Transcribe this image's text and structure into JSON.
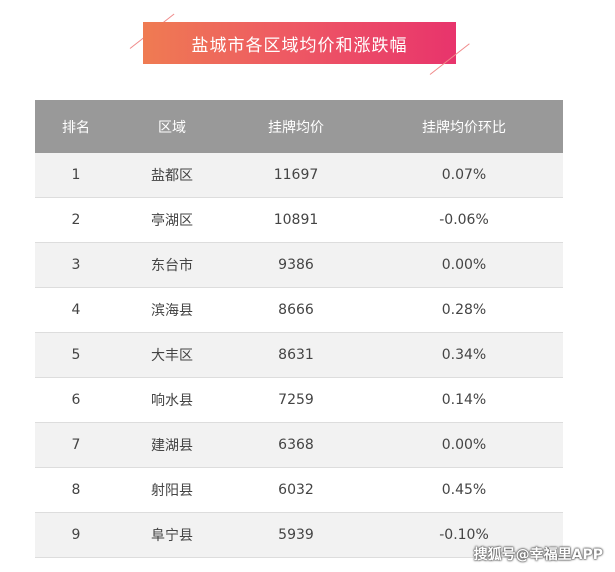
{
  "title": "盐城市各区域均价和涨跌幅",
  "table": {
    "headers": [
      "排名",
      "区域",
      "挂牌均价",
      "挂牌均价环比"
    ],
    "rows": [
      [
        "1",
        "盐都区",
        "11697",
        "0.07%"
      ],
      [
        "2",
        "亭湖区",
        "10891",
        "-0.06%"
      ],
      [
        "3",
        "东台市",
        "9386",
        "0.00%"
      ],
      [
        "4",
        "滨海县",
        "8666",
        "0.28%"
      ],
      [
        "5",
        "大丰区",
        "8631",
        "0.34%"
      ],
      [
        "6",
        "响水县",
        "7259",
        "0.14%"
      ],
      [
        "7",
        "建湖县",
        "6368",
        "0.00%"
      ],
      [
        "8",
        "射阳县",
        "6032",
        "0.45%"
      ],
      [
        "9",
        "阜宁县",
        "5939",
        "-0.10%"
      ]
    ]
  },
  "watermark": "搜狐号@幸福里APP",
  "colors": {
    "banner_start": "#ef7b52",
    "banner_end": "#e8346c",
    "header_bg": "#999999",
    "row_alt_bg": "#f2f2f2"
  }
}
